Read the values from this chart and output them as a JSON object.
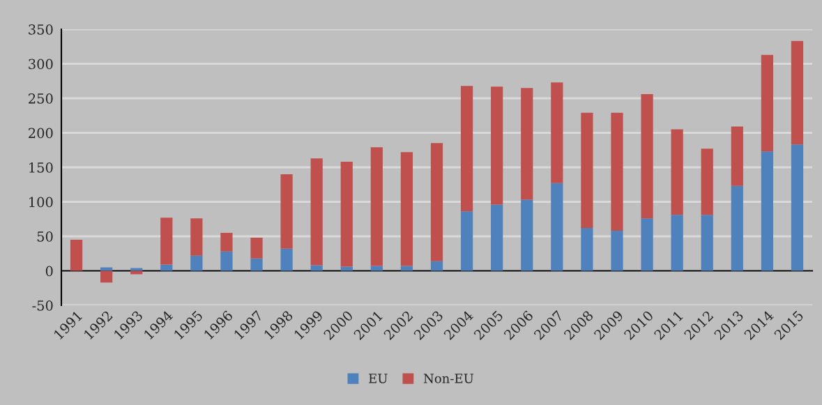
{
  "chart_data": {
    "type": "bar",
    "stacked": true,
    "categories": [
      "1991",
      "1992",
      "1993",
      "1994",
      "1995",
      "1996",
      "1997",
      "1998",
      "1999",
      "2000",
      "2001",
      "2002",
      "2003",
      "2004",
      "2005",
      "2006",
      "2007",
      "2008",
      "2009",
      "2010",
      "2011",
      "2012",
      "2013",
      "2014",
      "2015"
    ],
    "series": [
      {
        "name": "EU",
        "color": "#4f81bd",
        "values": [
          null,
          5,
          4,
          9,
          22,
          28,
          18,
          32,
          8,
          6,
          7,
          7,
          14,
          86,
          96,
          103,
          127,
          62,
          58,
          76,
          81,
          81,
          123,
          173,
          183
        ]
      },
      {
        "name": "Non-EU",
        "color": "#c0504d",
        "values": [
          45,
          -17,
          -5,
          68,
          54,
          27,
          30,
          108,
          155,
          152,
          172,
          165,
          171,
          182,
          171,
          162,
          146,
          167,
          171,
          180,
          124,
          96,
          86,
          140,
          150
        ]
      }
    ],
    "ylim": [
      -50,
      350
    ],
    "yticks": [
      -50,
      0,
      50,
      100,
      150,
      200,
      250,
      300,
      350
    ],
    "grid": "y",
    "legend": "bottom"
  }
}
